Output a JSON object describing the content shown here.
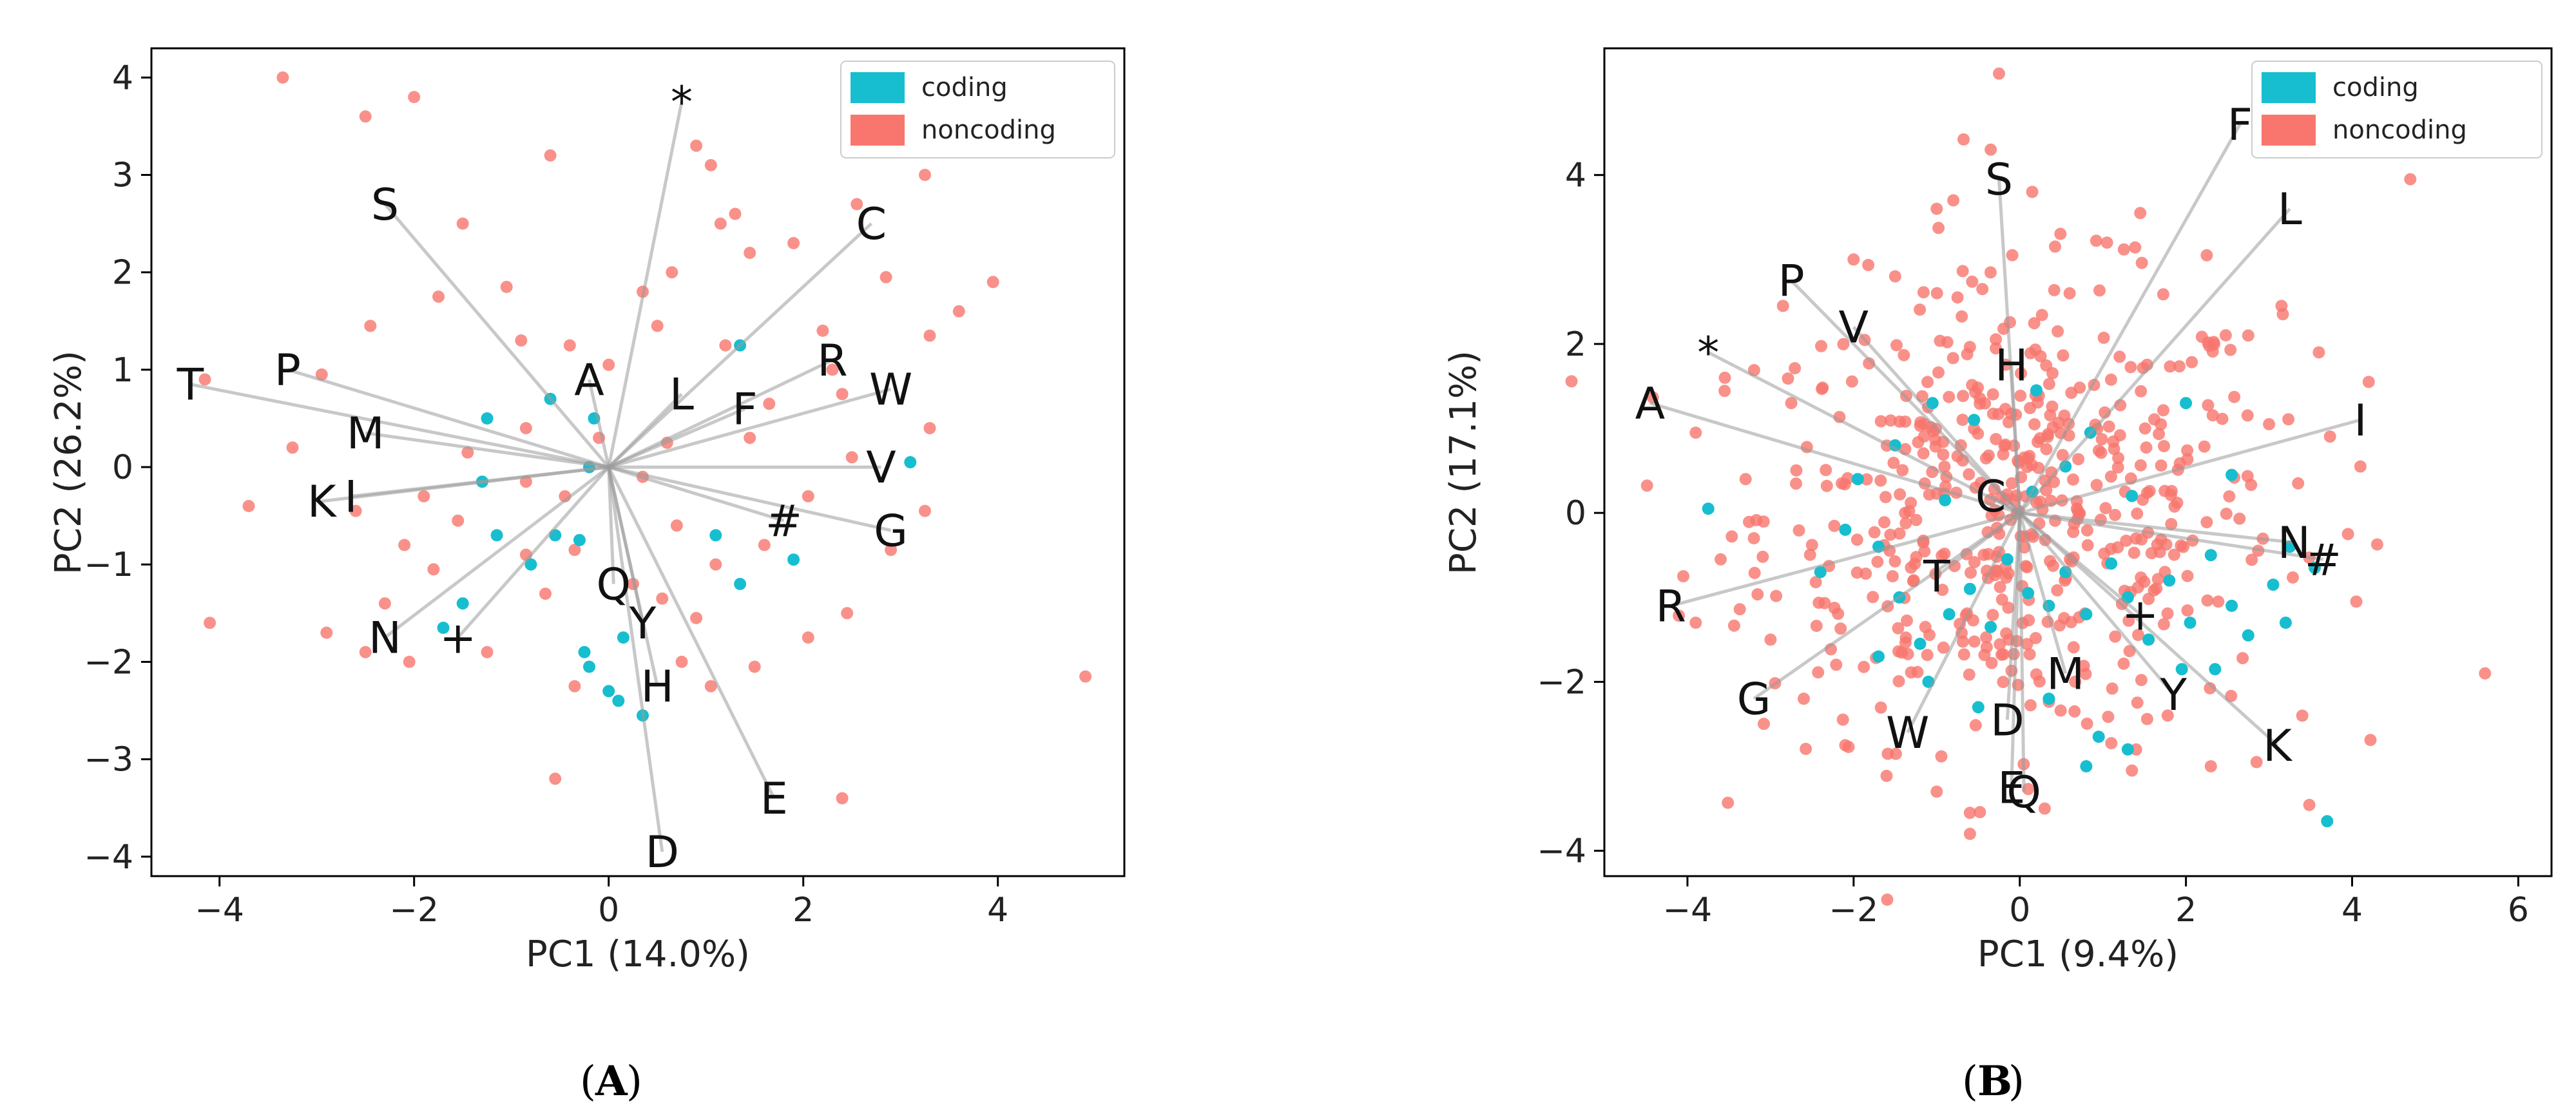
{
  "colors": {
    "coding": "#17becf",
    "noncoding": "#f8766d"
  },
  "chart_data": [
    {
      "type": "scatter",
      "panel": "A",
      "xlabel": "PC1 (14.0%)",
      "ylabel": "PC2 (26.2%)",
      "xlim": [
        -4.7,
        5.3
      ],
      "ylim": [
        -4.2,
        4.3
      ],
      "xticks": [
        -4,
        -2,
        0,
        2,
        4
      ],
      "yticks": [
        -4,
        -3,
        -2,
        -1,
        0,
        1,
        2,
        3,
        4
      ],
      "legend": {
        "position": "top-right",
        "entries": [
          "coding",
          "noncoding"
        ]
      },
      "loadings": [
        {
          "label": "*",
          "x": 0.75,
          "y": 3.75
        },
        {
          "label": "S",
          "x": -2.3,
          "y": 2.7
        },
        {
          "label": "C",
          "x": 2.7,
          "y": 2.5
        },
        {
          "label": "T",
          "x": -4.3,
          "y": 0.85
        },
        {
          "label": "P",
          "x": -3.3,
          "y": 1.0
        },
        {
          "label": "A",
          "x": -0.2,
          "y": 0.9
        },
        {
          "label": "L",
          "x": 0.75,
          "y": 0.75
        },
        {
          "label": "F",
          "x": 1.4,
          "y": 0.6
        },
        {
          "label": "R",
          "x": 2.3,
          "y": 1.1
        },
        {
          "label": "W",
          "x": 2.9,
          "y": 0.8
        },
        {
          "label": "M",
          "x": -2.5,
          "y": 0.35
        },
        {
          "label": "V",
          "x": 2.8,
          "y": 0.0
        },
        {
          "label": "K",
          "x": -2.95,
          "y": -0.35
        },
        {
          "label": "I",
          "x": -2.65,
          "y": -0.3
        },
        {
          "label": "#",
          "x": 1.8,
          "y": -0.55
        },
        {
          "label": "G",
          "x": 2.9,
          "y": -0.65
        },
        {
          "label": "Q",
          "x": 0.05,
          "y": -1.2
        },
        {
          "label": "N",
          "x": -2.3,
          "y": -1.75
        },
        {
          "label": "+",
          "x": -1.55,
          "y": -1.75
        },
        {
          "label": "Y",
          "x": 0.35,
          "y": -1.6
        },
        {
          "label": "H",
          "x": 0.5,
          "y": -2.25
        },
        {
          "label": "E",
          "x": 1.7,
          "y": -3.4
        },
        {
          "label": "D",
          "x": 0.55,
          "y": -3.95
        }
      ],
      "coding_points": [
        [
          -1.25,
          0.5
        ],
        [
          -0.6,
          0.7
        ],
        [
          -0.15,
          0.5
        ],
        [
          1.35,
          1.25
        ],
        [
          -1.3,
          -0.15
        ],
        [
          -1.15,
          -0.7
        ],
        [
          -0.55,
          -0.7
        ],
        [
          -0.3,
          -0.75
        ],
        [
          -0.2,
          0.0
        ],
        [
          1.1,
          -0.7
        ],
        [
          1.35,
          -1.2
        ],
        [
          1.9,
          -0.95
        ],
        [
          3.1,
          0.05
        ],
        [
          -0.8,
          -1.0
        ],
        [
          -1.5,
          -1.4
        ],
        [
          -1.7,
          -1.65
        ],
        [
          -0.25,
          -1.9
        ],
        [
          -0.2,
          -2.05
        ],
        [
          0.0,
          -2.3
        ],
        [
          0.1,
          -2.4
        ],
        [
          0.35,
          -2.55
        ],
        [
          0.15,
          -1.75
        ]
      ],
      "noncoding_points": [
        [
          -3.35,
          4.0
        ],
        [
          -2.5,
          3.6
        ],
        [
          -2.0,
          3.8
        ],
        [
          -0.6,
          3.2
        ],
        [
          -1.5,
          2.5
        ],
        [
          -0.9,
          1.3
        ],
        [
          0.9,
          3.3
        ],
        [
          1.05,
          3.1
        ],
        [
          1.15,
          2.5
        ],
        [
          1.3,
          2.6
        ],
        [
          0.65,
          2.0
        ],
        [
          0.35,
          1.8
        ],
        [
          1.45,
          2.2
        ],
        [
          1.9,
          2.3
        ],
        [
          2.55,
          2.7
        ],
        [
          3.25,
          3.0
        ],
        [
          2.2,
          1.4
        ],
        [
          2.85,
          1.95
        ],
        [
          3.3,
          1.35
        ],
        [
          3.6,
          1.6
        ],
        [
          3.95,
          1.9
        ],
        [
          2.4,
          0.75
        ],
        [
          1.2,
          1.25
        ],
        [
          1.45,
          0.3
        ],
        [
          2.5,
          0.1
        ],
        [
          3.3,
          0.4
        ],
        [
          3.25,
          -0.45
        ],
        [
          2.9,
          -0.85
        ],
        [
          2.05,
          -0.3
        ],
        [
          1.6,
          -0.8
        ],
        [
          1.1,
          -1.0
        ],
        [
          0.7,
          -0.6
        ],
        [
          0.35,
          -0.1
        ],
        [
          -0.45,
          -0.3
        ],
        [
          -0.85,
          -0.15
        ],
        [
          -1.55,
          -0.55
        ],
        [
          -1.9,
          -0.3
        ],
        [
          -2.6,
          -0.45
        ],
        [
          -3.25,
          0.2
        ],
        [
          -3.7,
          -0.4
        ],
        [
          -4.15,
          0.9
        ],
        [
          -2.45,
          1.45
        ],
        [
          -2.95,
          0.95
        ],
        [
          -1.75,
          1.75
        ],
        [
          -1.05,
          1.85
        ],
        [
          -0.4,
          1.25
        ],
        [
          0.0,
          1.05
        ],
        [
          0.5,
          1.45
        ],
        [
          -0.35,
          -0.85
        ],
        [
          -0.85,
          -0.9
        ],
        [
          -1.8,
          -1.05
        ],
        [
          -2.1,
          -0.8
        ],
        [
          -2.3,
          -1.4
        ],
        [
          -2.9,
          -1.7
        ],
        [
          -2.05,
          -2.0
        ],
        [
          -2.5,
          -1.9
        ],
        [
          -1.25,
          -1.9
        ],
        [
          -0.35,
          -2.25
        ],
        [
          0.75,
          -2.0
        ],
        [
          1.05,
          -2.25
        ],
        [
          1.5,
          -2.05
        ],
        [
          2.05,
          -1.75
        ],
        [
          2.45,
          -1.5
        ],
        [
          0.25,
          -1.2
        ],
        [
          0.55,
          -1.35
        ],
        [
          0.9,
          -1.55
        ],
        [
          -0.65,
          -1.3
        ],
        [
          -4.1,
          -1.6
        ],
        [
          -0.55,
          -3.2
        ],
        [
          2.4,
          -3.4
        ],
        [
          4.9,
          -2.15
        ],
        [
          -0.85,
          0.4
        ],
        [
          -1.45,
          0.15
        ],
        [
          1.65,
          0.65
        ],
        [
          2.3,
          1.0
        ],
        [
          -0.1,
          0.3
        ],
        [
          0.6,
          0.25
        ]
      ]
    },
    {
      "type": "scatter",
      "panel": "B",
      "xlabel": "PC1 (9.4%)",
      "ylabel": "PC2 (17.1%)",
      "xlim": [
        -5.0,
        6.4
      ],
      "ylim": [
        -4.3,
        5.5
      ],
      "xticks": [
        -4,
        -2,
        0,
        2,
        4,
        6
      ],
      "yticks": [
        -4,
        -2,
        0,
        2,
        4
      ],
      "legend": {
        "position": "top-right",
        "entries": [
          "coding",
          "noncoding"
        ]
      },
      "loadings": [
        {
          "label": "F",
          "x": 2.65,
          "y": 4.6
        },
        {
          "label": "S",
          "x": -0.25,
          "y": 3.95
        },
        {
          "label": "L",
          "x": 3.25,
          "y": 3.6
        },
        {
          "label": "P",
          "x": -2.75,
          "y": 2.75
        },
        {
          "label": "V",
          "x": -2.0,
          "y": 2.2
        },
        {
          "label": "*",
          "x": -3.75,
          "y": 1.9
        },
        {
          "label": "H",
          "x": -0.1,
          "y": 1.75
        },
        {
          "label": "A",
          "x": -4.45,
          "y": 1.3
        },
        {
          "label": "I",
          "x": 4.1,
          "y": 1.1
        },
        {
          "label": "C",
          "x": -0.35,
          "y": 0.2
        },
        {
          "label": "N",
          "x": 3.3,
          "y": -0.35
        },
        {
          "label": "#",
          "x": 3.65,
          "y": -0.55
        },
        {
          "label": "T",
          "x": -1.0,
          "y": -0.75
        },
        {
          "label": "R",
          "x": -4.2,
          "y": -1.1
        },
        {
          "label": "+",
          "x": 1.45,
          "y": -1.2
        },
        {
          "label": "M",
          "x": 0.55,
          "y": -1.9
        },
        {
          "label": "Y",
          "x": 1.85,
          "y": -2.15
        },
        {
          "label": "G",
          "x": -3.2,
          "y": -2.2
        },
        {
          "label": "D",
          "x": -0.15,
          "y": -2.45
        },
        {
          "label": "W",
          "x": -1.35,
          "y": -2.6
        },
        {
          "label": "K",
          "x": 3.1,
          "y": -2.75
        },
        {
          "label": "E",
          "x": -0.1,
          "y": -3.25
        },
        {
          "label": "Q",
          "x": 0.05,
          "y": -3.3
        }
      ],
      "coding_points": [
        [
          -3.75,
          0.05
        ],
        [
          -2.4,
          -0.7
        ],
        [
          -1.7,
          -0.4
        ],
        [
          -1.45,
          -1.0
        ],
        [
          -1.2,
          -1.55
        ],
        [
          -0.85,
          -1.2
        ],
        [
          -0.6,
          -0.9
        ],
        [
          -0.35,
          -1.35
        ],
        [
          -0.15,
          -0.55
        ],
        [
          0.1,
          -0.95
        ],
        [
          0.35,
          -1.1
        ],
        [
          0.55,
          -0.7
        ],
        [
          0.8,
          -1.2
        ],
        [
          1.1,
          -0.6
        ],
        [
          1.3,
          -1.0
        ],
        [
          1.55,
          -1.5
        ],
        [
          1.8,
          -0.8
        ],
        [
          2.05,
          -1.3
        ],
        [
          2.3,
          -0.5
        ],
        [
          2.55,
          -1.1
        ],
        [
          2.75,
          -1.45
        ],
        [
          3.05,
          -0.85
        ],
        [
          3.2,
          -1.3
        ],
        [
          -1.95,
          0.4
        ],
        [
          -1.5,
          0.8
        ],
        [
          -1.05,
          1.3
        ],
        [
          -0.55,
          1.1
        ],
        [
          0.2,
          1.45
        ],
        [
          0.55,
          0.55
        ],
        [
          0.85,
          0.95
        ],
        [
          1.35,
          0.2
        ],
        [
          2.0,
          1.3
        ],
        [
          2.55,
          0.45
        ],
        [
          -1.1,
          -2.0
        ],
        [
          -0.5,
          -2.3
        ],
        [
          0.35,
          -2.2
        ],
        [
          0.95,
          -2.65
        ],
        [
          1.3,
          -2.8
        ],
        [
          0.8,
          -3.0
        ],
        [
          1.95,
          -1.85
        ],
        [
          2.35,
          -1.85
        ],
        [
          3.25,
          -0.4
        ],
        [
          3.55,
          -0.65
        ],
        [
          3.7,
          -3.65
        ],
        [
          -2.1,
          -0.2
        ],
        [
          -0.9,
          0.15
        ],
        [
          0.15,
          0.25
        ],
        [
          -1.7,
          -1.7
        ]
      ],
      "noncoding_points": [
        [
          -0.25,
          5.2
        ],
        [
          -0.35,
          4.3
        ],
        [
          -0.8,
          3.7
        ],
        [
          0.15,
          3.8
        ],
        [
          -1.0,
          3.6
        ],
        [
          1.45,
          3.55
        ],
        [
          -2.0,
          3.0
        ],
        [
          2.25,
          3.05
        ],
        [
          -2.85,
          2.45
        ],
        [
          3.15,
          2.45
        ],
        [
          -3.55,
          1.6
        ],
        [
          3.6,
          1.9
        ],
        [
          4.2,
          1.55
        ],
        [
          4.7,
          3.95
        ],
        [
          -3.9,
          0.95
        ],
        [
          4.1,
          0.55
        ],
        [
          -3.6,
          -0.55
        ],
        [
          -4.05,
          -0.75
        ],
        [
          -3.0,
          -1.5
        ],
        [
          -2.6,
          -2.2
        ],
        [
          -2.1,
          -2.75
        ],
        [
          -1.0,
          -3.3
        ],
        [
          -0.6,
          -3.8
        ],
        [
          0.3,
          -3.5
        ],
        [
          1.35,
          -3.05
        ],
        [
          2.3,
          -3.0
        ],
        [
          2.85,
          -2.95
        ],
        [
          3.4,
          -2.4
        ],
        [
          4.05,
          -1.05
        ],
        [
          5.6,
          -1.9
        ],
        [
          -3.9,
          -1.3
        ],
        [
          -3.3,
          0.4
        ],
        [
          3.95,
          -0.25
        ],
        [
          -1.5,
          2.8
        ],
        [
          1.05,
          3.2
        ],
        [
          -0.45,
          2.65
        ],
        [
          0.6,
          2.6
        ],
        [
          2.75,
          2.1
        ],
        [
          -2.75,
          1.3
        ],
        [
          3.0,
          1.05
        ],
        [
          -3.2,
          -0.3
        ],
        [
          3.35,
          0.35
        ]
      ],
      "noncoding_cloud": {
        "count": 520,
        "center": [
          0.0,
          0.0
        ],
        "sd": [
          1.55,
          1.35
        ]
      }
    }
  ]
}
